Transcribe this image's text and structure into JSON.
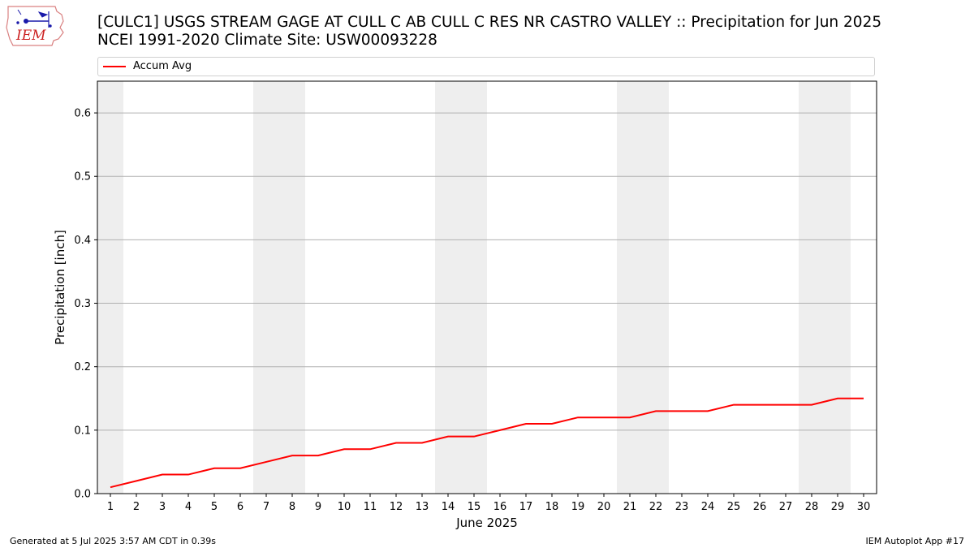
{
  "header": {
    "title_line1": "[CULC1] USGS STREAM GAGE  AT CULL C AB CULL C RES NR CASTRO VALLEY :: Precipitation for Jun 2025",
    "title_line2": "NCEI 1991-2020 Climate Site: USW00093228",
    "logo_text": "IEM",
    "logo_icon": "iowa-state-outline-icon"
  },
  "legend": {
    "position": "top",
    "entries": [
      {
        "label": "Accum Avg",
        "color": "#ff0000"
      }
    ]
  },
  "footer": {
    "left": "Generated at 5 Jul 2025 3:57 AM CDT in 0.39s",
    "right": "IEM Autoplot App #17"
  },
  "chart_data": {
    "type": "line",
    "xlabel": "June 2025",
    "ylabel": "Precipitation [inch]",
    "xlim": [
      0.5,
      30.5
    ],
    "ylim": [
      0,
      0.65
    ],
    "grid": "horizontal",
    "x": [
      1,
      2,
      3,
      4,
      5,
      6,
      7,
      8,
      9,
      10,
      11,
      12,
      13,
      14,
      15,
      16,
      17,
      18,
      19,
      20,
      21,
      22,
      23,
      24,
      25,
      26,
      27,
      28,
      29,
      30
    ],
    "x_tick_labels": [
      "1",
      "2",
      "3",
      "4",
      "5",
      "6",
      "7",
      "8",
      "9",
      "10",
      "11",
      "12",
      "13",
      "14",
      "15",
      "16",
      "17",
      "18",
      "19",
      "20",
      "21",
      "22",
      "23",
      "24",
      "25",
      "26",
      "27",
      "28",
      "29",
      "30"
    ],
    "y_ticks": [
      0.0,
      0.1,
      0.2,
      0.3,
      0.4,
      0.5,
      0.6
    ],
    "y_tick_labels": [
      "0.0",
      "0.1",
      "0.2",
      "0.3",
      "0.4",
      "0.5",
      "0.6"
    ],
    "series": [
      {
        "name": "Accum Avg",
        "color": "#ff0000",
        "values": [
          0.01,
          0.02,
          0.03,
          0.03,
          0.04,
          0.04,
          0.05,
          0.06,
          0.06,
          0.07,
          0.07,
          0.08,
          0.08,
          0.09,
          0.09,
          0.1,
          0.11,
          0.11,
          0.12,
          0.12,
          0.12,
          0.13,
          0.13,
          0.13,
          0.14,
          0.14,
          0.14,
          0.14,
          0.15,
          0.15
        ]
      }
    ],
    "weekend_shading": {
      "color": "#eeeeee",
      "ranges": [
        [
          0.5,
          1.5
        ],
        [
          6.5,
          8.5
        ],
        [
          13.5,
          15.5
        ],
        [
          20.5,
          22.5
        ],
        [
          27.5,
          29.5
        ]
      ]
    }
  }
}
